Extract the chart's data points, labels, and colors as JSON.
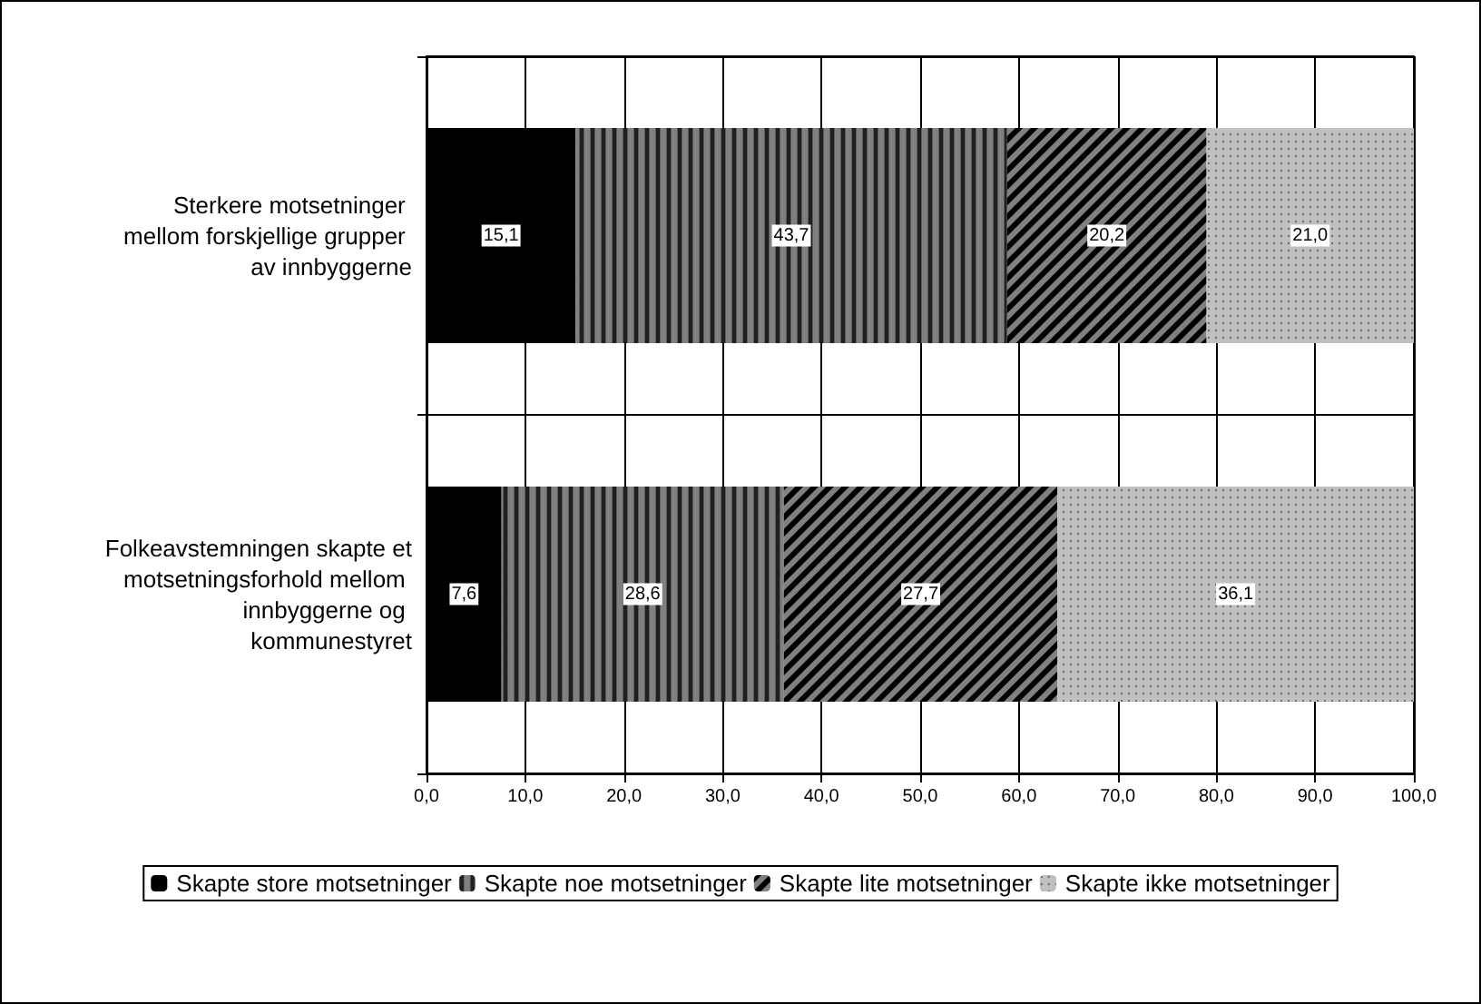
{
  "chart_data": {
    "type": "bar",
    "orientation": "horizontal",
    "stacked": true,
    "categories": [
      "Sterkere motsetninger mellom forskjellige grupper av innbyggerne",
      "Folkeavstemningen skapte et motsetningsforhold mellom innbyggerne og kommunestyret"
    ],
    "series": [
      {
        "name": "Skapte store motsetninger",
        "color": "#000000",
        "values": [
          15.1,
          7.6
        ],
        "value_labels": [
          "15,1",
          "7,6"
        ]
      },
      {
        "name": "Skapte noe motsetninger",
        "color": "#808080",
        "values": [
          43.7,
          28.6
        ],
        "value_labels": [
          "43,7",
          "28,6"
        ]
      },
      {
        "name": "Skapte lite motsetninger",
        "color": "#808080",
        "values": [
          20.2,
          27.7
        ],
        "value_labels": [
          "20,2",
          "27,7"
        ]
      },
      {
        "name": "Skapte ikke motsetninger",
        "color": "#c0c0c0",
        "values": [
          21.0,
          36.1
        ],
        "value_labels": [
          "21,0",
          "36,1"
        ]
      }
    ],
    "xlim": [
      0,
      100
    ],
    "xticks": [
      {
        "value": 0,
        "label": "0,0"
      },
      {
        "value": 10,
        "label": "10,0"
      },
      {
        "value": 20,
        "label": "20,0"
      },
      {
        "value": 30,
        "label": "30,0"
      },
      {
        "value": 40,
        "label": "40,0"
      },
      {
        "value": 50,
        "label": "50,0"
      },
      {
        "value": 60,
        "label": "60,0"
      },
      {
        "value": 70,
        "label": "70,0"
      },
      {
        "value": 80,
        "label": "80,0"
      },
      {
        "value": 90,
        "label": "90,0"
      },
      {
        "value": 100,
        "label": "100,0"
      }
    ],
    "grid": true,
    "legend": "bottom"
  }
}
